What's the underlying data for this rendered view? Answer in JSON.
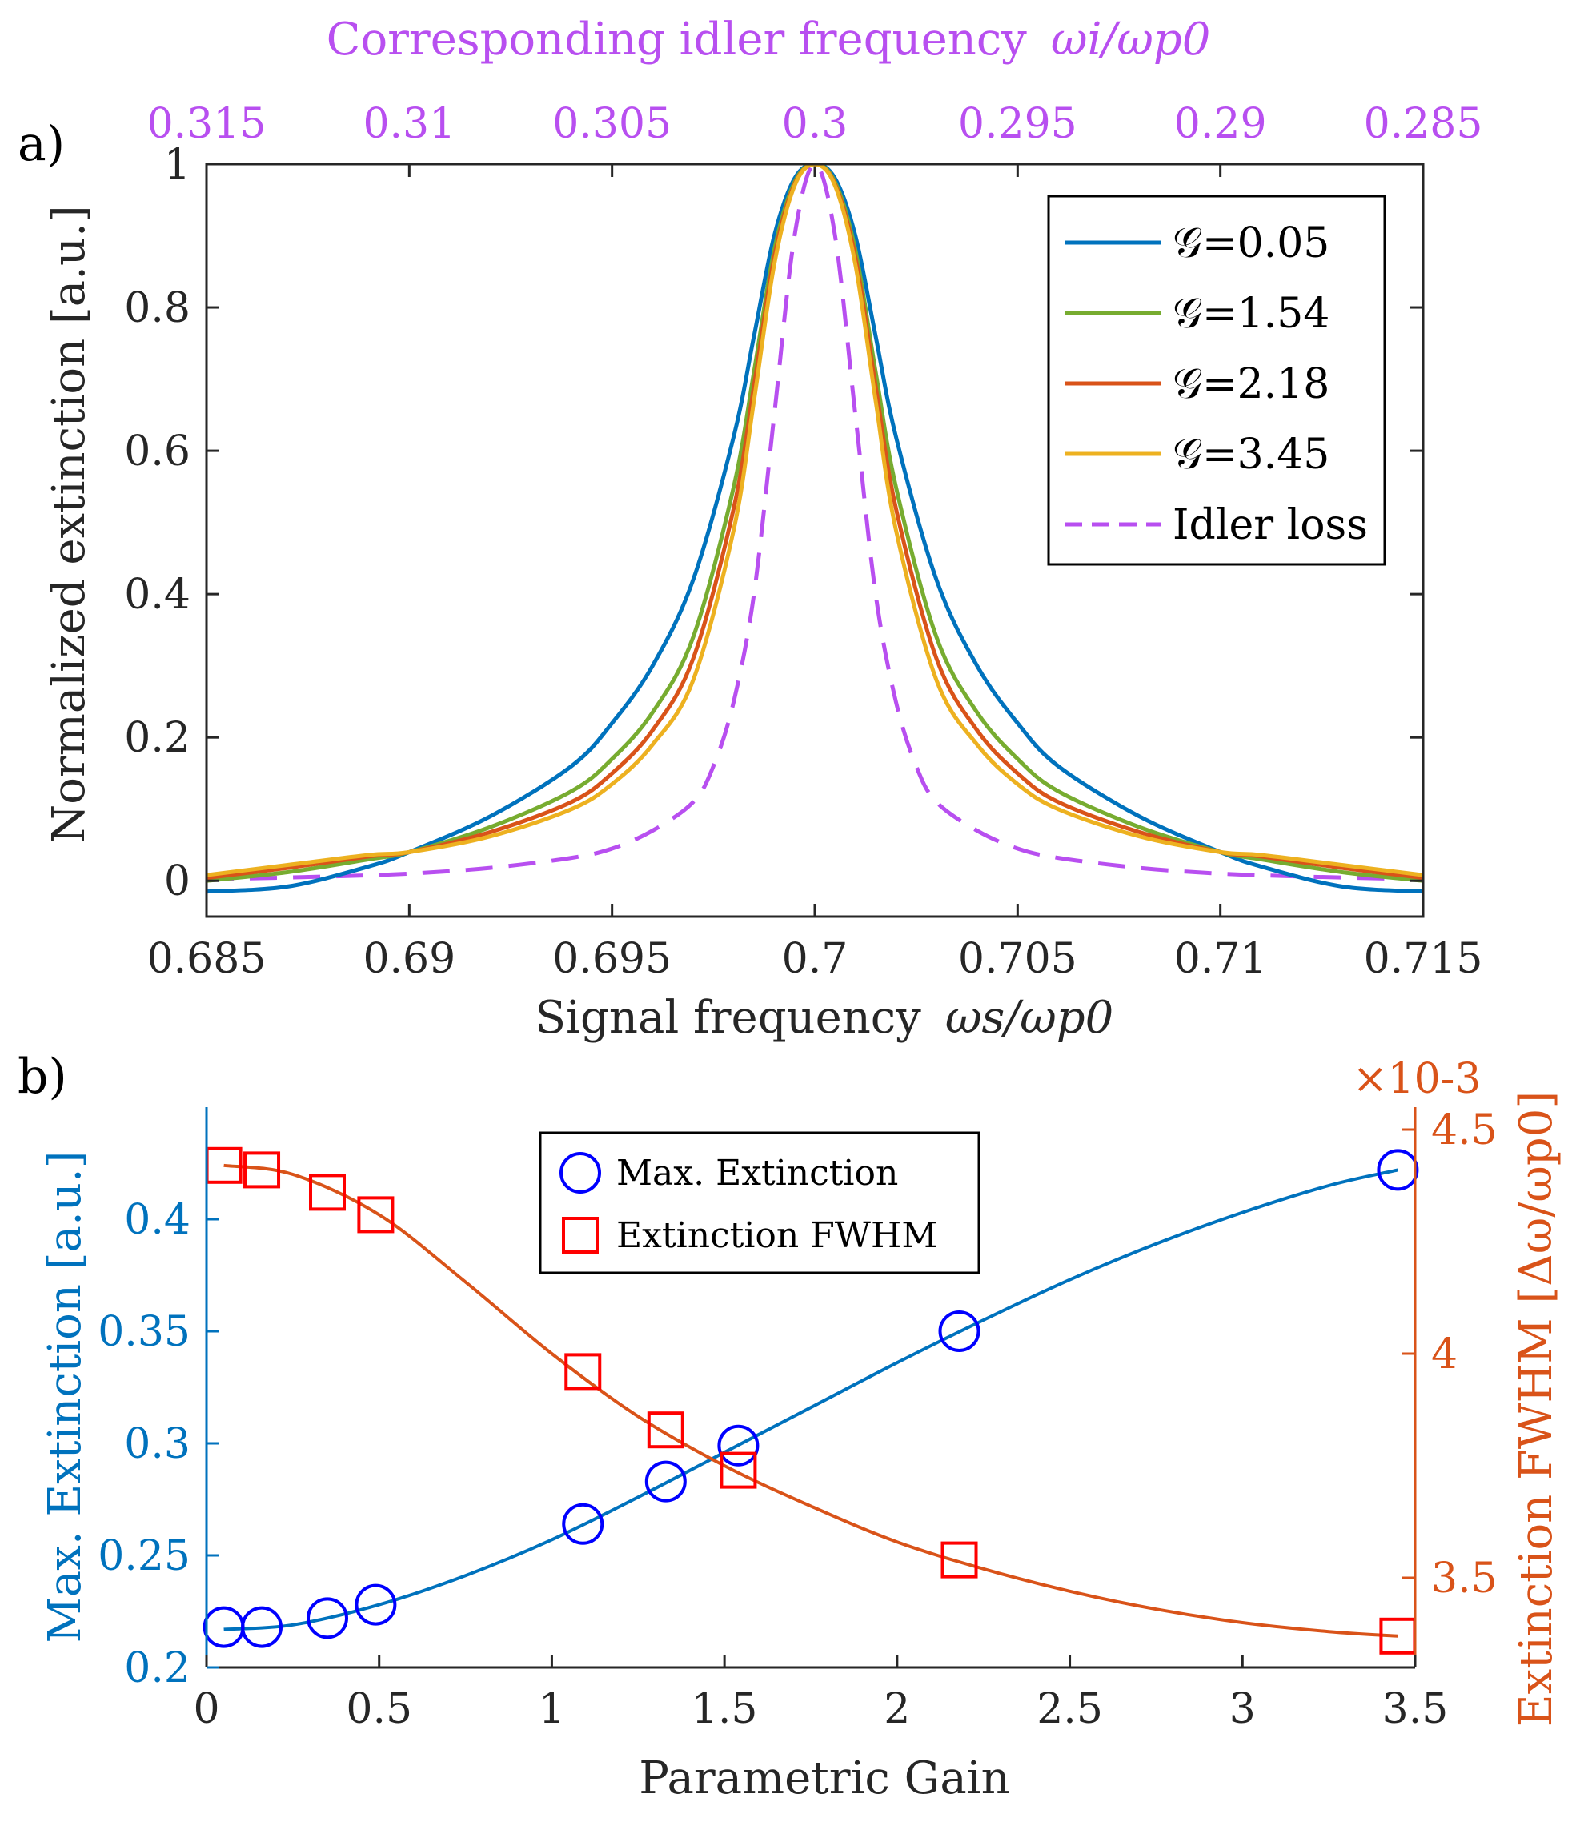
{
  "chart_data": [
    {
      "panel_label": "a)",
      "type": "line",
      "xlabel": "Signal frequency",
      "xlabel_math": "ωs/ωp0",
      "ylabel": "Normalized extinction [a.u.]",
      "top_xlabel": "Corresponding idler frequency",
      "top_xlabel_math": "ωi/ωp0",
      "xlim": [
        0.685,
        0.715
      ],
      "ylim": [
        -0.05,
        1.0
      ],
      "x_ticks": [
        "0.685",
        "0.69",
        "0.695",
        "0.7",
        "0.705",
        "0.71",
        "0.715"
      ],
      "x_tick_values": [
        0.685,
        0.69,
        0.695,
        0.7,
        0.705,
        0.71,
        0.715
      ],
      "top_x_ticks": [
        "0.315",
        "0.31",
        "0.305",
        "0.3",
        "0.295",
        "0.29",
        "0.285"
      ],
      "y_ticks": [
        "0",
        "0.2",
        "0.4",
        "0.6",
        "0.8",
        "1"
      ],
      "y_tick_values": [
        0,
        0.2,
        0.4,
        0.6,
        0.8,
        1.0
      ],
      "center": 0.7,
      "legend_symbol": "𝒢",
      "series": [
        {
          "name": "𝒢=0.05",
          "gain": "0.05",
          "color": "#0072BD",
          "style": "solid",
          "x": [
            0.685,
            0.687,
            0.689,
            0.69,
            0.692,
            0.694,
            0.695,
            0.696,
            0.697,
            0.698,
            0.6985,
            0.699,
            0.6995,
            0.7,
            0.7005,
            0.701,
            0.7015,
            0.702,
            0.703,
            0.704,
            0.705,
            0.706,
            0.708,
            0.71,
            0.711,
            0.713,
            0.715
          ],
          "y": [
            -0.015,
            -0.008,
            0.02,
            0.04,
            0.09,
            0.16,
            0.22,
            0.3,
            0.42,
            0.62,
            0.76,
            0.9,
            0.98,
            1.0,
            0.98,
            0.9,
            0.76,
            0.62,
            0.42,
            0.3,
            0.22,
            0.16,
            0.09,
            0.04,
            0.02,
            -0.008,
            -0.015
          ]
        },
        {
          "name": "𝒢=1.54",
          "gain": "1.54",
          "color": "#77AC30",
          "style": "solid",
          "x": [
            0.685,
            0.687,
            0.689,
            0.69,
            0.692,
            0.694,
            0.695,
            0.696,
            0.697,
            0.698,
            0.6985,
            0.699,
            0.6995,
            0.7,
            0.7005,
            0.701,
            0.7015,
            0.702,
            0.703,
            0.704,
            0.705,
            0.706,
            0.708,
            0.71,
            0.711,
            0.713,
            0.715
          ],
          "y": [
            0.0,
            0.012,
            0.03,
            0.04,
            0.075,
            0.125,
            0.17,
            0.235,
            0.34,
            0.55,
            0.71,
            0.88,
            0.975,
            1.0,
            0.975,
            0.88,
            0.71,
            0.55,
            0.34,
            0.235,
            0.17,
            0.125,
            0.075,
            0.04,
            0.03,
            0.012,
            0.0
          ]
        },
        {
          "name": "𝒢=2.18",
          "gain": "2.18",
          "color": "#D95319",
          "style": "solid",
          "x": [
            0.685,
            0.687,
            0.689,
            0.69,
            0.692,
            0.694,
            0.695,
            0.696,
            0.697,
            0.698,
            0.6985,
            0.699,
            0.6995,
            0.7,
            0.7005,
            0.701,
            0.7015,
            0.702,
            0.703,
            0.704,
            0.705,
            0.706,
            0.708,
            0.71,
            0.711,
            0.713,
            0.715
          ],
          "y": [
            0.004,
            0.018,
            0.034,
            0.04,
            0.068,
            0.11,
            0.15,
            0.21,
            0.31,
            0.52,
            0.69,
            0.87,
            0.972,
            1.0,
            0.972,
            0.87,
            0.69,
            0.52,
            0.31,
            0.21,
            0.15,
            0.11,
            0.068,
            0.04,
            0.034,
            0.018,
            0.004
          ]
        },
        {
          "name": "𝒢=3.45",
          "gain": "3.45",
          "color": "#EDB120",
          "style": "solid",
          "x": [
            0.685,
            0.687,
            0.689,
            0.69,
            0.692,
            0.694,
            0.695,
            0.696,
            0.697,
            0.698,
            0.6985,
            0.699,
            0.6995,
            0.7,
            0.7005,
            0.701,
            0.7015,
            0.702,
            0.703,
            0.704,
            0.705,
            0.706,
            0.708,
            0.71,
            0.711,
            0.713,
            0.715
          ],
          "y": [
            0.008,
            0.022,
            0.036,
            0.04,
            0.062,
            0.1,
            0.135,
            0.19,
            0.28,
            0.49,
            0.67,
            0.86,
            0.97,
            1.0,
            0.97,
            0.86,
            0.67,
            0.49,
            0.28,
            0.19,
            0.135,
            0.1,
            0.062,
            0.04,
            0.036,
            0.022,
            0.008
          ]
        },
        {
          "name": "Idler loss",
          "gain": "",
          "color": "#B84FF0",
          "style": "dashed",
          "x": [
            0.685,
            0.688,
            0.69,
            0.692,
            0.694,
            0.695,
            0.696,
            0.697,
            0.6975,
            0.698,
            0.6985,
            0.699,
            0.6995,
            0.7,
            0.7005,
            0.701,
            0.7015,
            0.702,
            0.7025,
            0.703,
            0.704,
            0.705,
            0.706,
            0.708,
            0.71,
            0.712,
            0.715
          ],
          "y": [
            0.002,
            0.006,
            0.01,
            0.018,
            0.032,
            0.045,
            0.07,
            0.11,
            0.16,
            0.25,
            0.4,
            0.65,
            0.9,
            1.0,
            0.9,
            0.65,
            0.4,
            0.25,
            0.16,
            0.11,
            0.07,
            0.045,
            0.032,
            0.018,
            0.01,
            0.006,
            0.002
          ]
        }
      ],
      "legend_position": "top-right"
    },
    {
      "panel_label": "b)",
      "type": "scatter",
      "xlabel": "Parametric Gain",
      "ylabel_left": "Max. Extinction [a.u.]",
      "ylabel_right": "Extinction FWHM [Δω/ωp0]",
      "right_exponent": "×10-3",
      "xlim": [
        0,
        3.5
      ],
      "ylim_left": [
        0.2,
        0.45
      ],
      "ylim_right": [
        3.3,
        4.55
      ],
      "x_ticks": [
        "0",
        "0.5",
        "1",
        "1.5",
        "2",
        "2.5",
        "3",
        "3.5"
      ],
      "x_tick_values": [
        0,
        0.5,
        1,
        1.5,
        2,
        2.5,
        3,
        3.5
      ],
      "y_ticks_left": [
        "0.2",
        "0.25",
        "0.3",
        "0.35",
        "0.4"
      ],
      "y_tick_values_left": [
        0.2,
        0.25,
        0.3,
        0.35,
        0.4
      ],
      "y_ticks_right": [
        "3.5",
        "4",
        "4.5"
      ],
      "y_tick_values_right": [
        3.5,
        4.0,
        4.5
      ],
      "left_color": "#0072BD",
      "right_color": "#D95319",
      "series": [
        {
          "name": "Max. Extinction",
          "marker": "circle",
          "color": "#0000FF",
          "axis": "left",
          "x": [
            0.05,
            0.16,
            0.35,
            0.49,
            1.09,
            1.33,
            1.54,
            2.18,
            3.45
          ],
          "y": [
            0.218,
            0.218,
            0.222,
            0.228,
            0.264,
            0.283,
            0.299,
            0.35,
            0.422
          ]
        },
        {
          "name": "Extinction FWHM",
          "marker": "square",
          "color": "#FF0000",
          "axis": "right",
          "x": [
            0.05,
            0.16,
            0.35,
            0.49,
            1.09,
            1.33,
            1.54,
            2.18,
            3.45
          ],
          "y": [
            4.42,
            4.41,
            4.36,
            4.31,
            3.96,
            3.83,
            3.74,
            3.54,
            3.37
          ]
        },
        {
          "name": "Max. Extinction fit",
          "style": "line",
          "color": "#0072BD",
          "axis": "left",
          "x": [
            0.05,
            0.25,
            0.5,
            0.75,
            1.0,
            1.25,
            1.5,
            1.75,
            2.0,
            2.25,
            2.5,
            2.75,
            3.0,
            3.25,
            3.45
          ],
          "y": [
            0.217,
            0.219,
            0.228,
            0.241,
            0.257,
            0.276,
            0.296,
            0.316,
            0.336,
            0.355,
            0.373,
            0.389,
            0.403,
            0.415,
            0.422
          ]
        },
        {
          "name": "Extinction FWHM fit",
          "style": "line",
          "color": "#D95319",
          "axis": "right",
          "x": [
            0.05,
            0.25,
            0.5,
            0.75,
            1.0,
            1.25,
            1.5,
            1.75,
            2.0,
            2.25,
            2.5,
            2.75,
            3.0,
            3.25,
            3.45
          ],
          "y": [
            4.42,
            4.4,
            4.31,
            4.16,
            4.0,
            3.86,
            3.75,
            3.66,
            3.58,
            3.52,
            3.47,
            3.43,
            3.4,
            3.38,
            3.37
          ]
        }
      ],
      "legend_position": "top-center"
    }
  ]
}
